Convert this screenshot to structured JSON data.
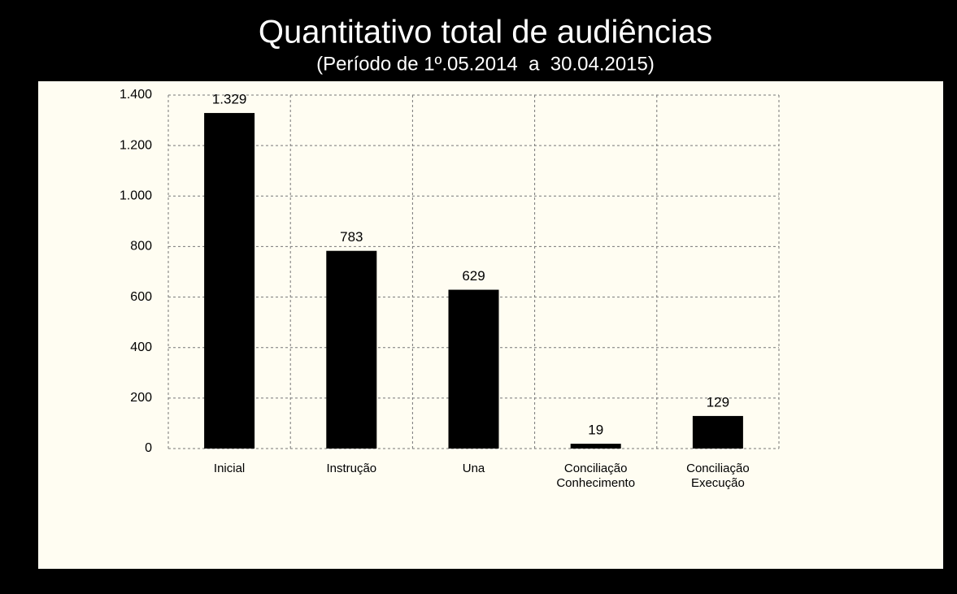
{
  "chart_data": {
    "type": "bar",
    "title": "Quantitativo total de audiências",
    "subtitle": "(Período de 1º.05.2014  a  30.04.2015)",
    "categories": [
      "Inicial",
      "Instrução",
      "Una",
      "Conciliação Conhecimento",
      "Conciliação Execução"
    ],
    "values": [
      1329,
      783,
      629,
      19,
      129
    ],
    "value_labels": [
      "1.329",
      "783",
      "629",
      "19",
      "129"
    ],
    "color": "#000000",
    "ylim": [
      0,
      1400
    ],
    "yticks": [
      0,
      200,
      400,
      600,
      800,
      {
        "value": 1000,
        "label": "1.000"
      },
      {
        "value": 1200,
        "label": "1.200"
      },
      {
        "value": 1400,
        "label": "1.400"
      }
    ],
    "grid": true
  }
}
